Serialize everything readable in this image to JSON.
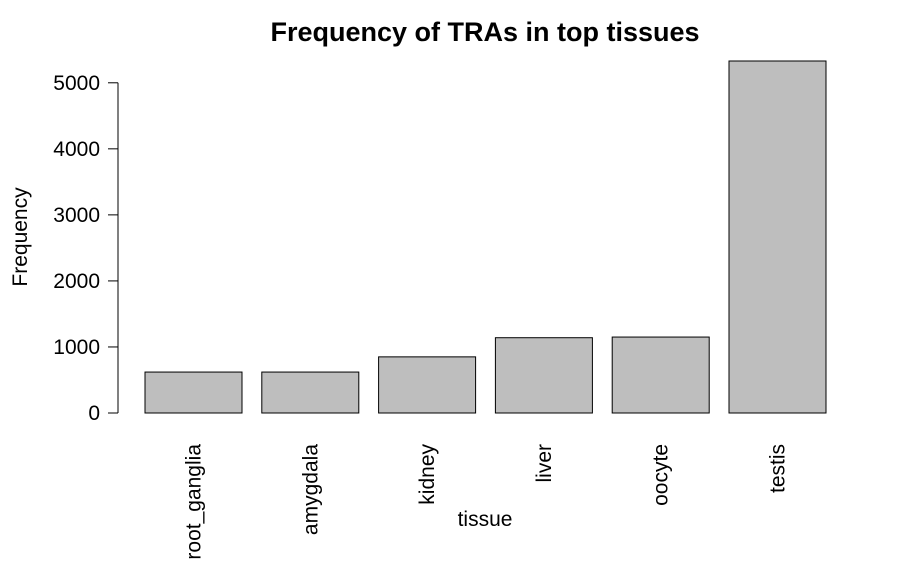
{
  "chart_data": {
    "type": "bar",
    "title": "Frequency of TRAs in top tissues",
    "xlabel": "tissue",
    "ylabel": "Frequency",
    "categories": [
      "root_ganglia",
      "amygdala",
      "kidney",
      "liver",
      "oocyte",
      "testis"
    ],
    "values": [
      620,
      620,
      850,
      1140,
      1150,
      5330
    ],
    "yticks": [
      0,
      1000,
      2000,
      3000,
      4000,
      5000
    ],
    "ylim": [
      0,
      5330
    ],
    "bar_color": "#bebebe",
    "grid": false,
    "legend": "none"
  }
}
